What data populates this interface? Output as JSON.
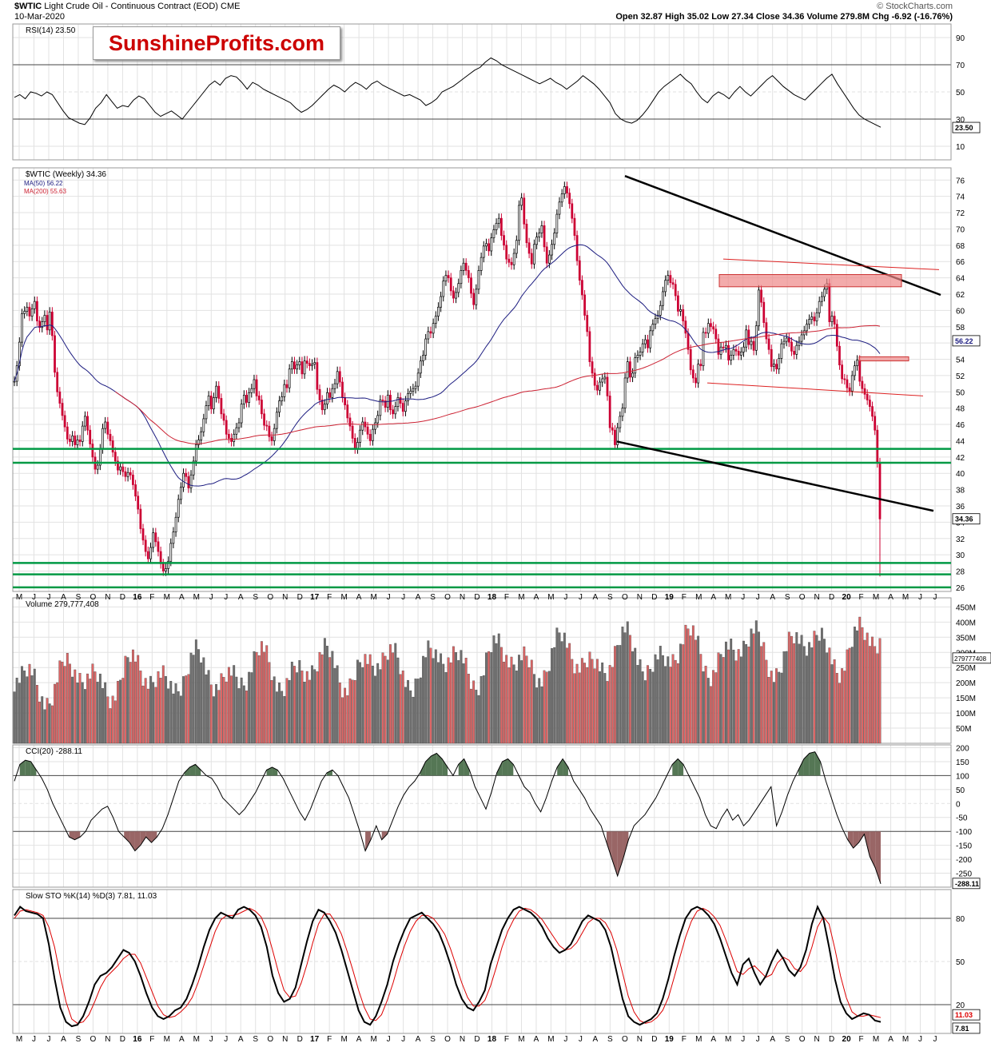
{
  "header": {
    "symbol": "$WTIC",
    "name": "Light Crude Oil - Continuous Contract (EOD)",
    "exchange": "CME",
    "date": "10-Mar-2020",
    "source": "© StockCharts.com",
    "quote": "Open 32.87  High 35.02  Low 27.34  Close 34.36  Volume 279.8M  Chg -6.92 (-16.76%)",
    "watermark": "SunshineProfits.com"
  },
  "colors": {
    "up": "#ffffff",
    "down": "#cc0033",
    "ma50": "#1c1c80",
    "ma200": "#cc2233",
    "support": "#009944",
    "vol_up": "#707070",
    "vol_down": "#dd6666",
    "osc_pos": "#557755",
    "osc_neg": "#996666"
  },
  "chart_data": [
    {
      "type": "line",
      "panel": "rsi",
      "title": "RSI(14) 23.50",
      "ylim": [
        0,
        100
      ],
      "ticks": [
        10,
        30,
        50,
        70,
        90
      ],
      "current_label": "23.50",
      "values": [
        46,
        48,
        45,
        50,
        49,
        47,
        50,
        48,
        42,
        36,
        31,
        29,
        27,
        26,
        31,
        38,
        42,
        48,
        43,
        38,
        40,
        39,
        44,
        47,
        45,
        40,
        35,
        32,
        34,
        36,
        33,
        30,
        35,
        40,
        45,
        50,
        55,
        58,
        55,
        60,
        62,
        61,
        57,
        52,
        57,
        55,
        52,
        50,
        48,
        46,
        44,
        42,
        38,
        35,
        37,
        40,
        44,
        48,
        52,
        55,
        53,
        50,
        54,
        57,
        55,
        52,
        56,
        58,
        55,
        53,
        51,
        49,
        47,
        48,
        46,
        44,
        40,
        42,
        45,
        50,
        52,
        54,
        57,
        60,
        63,
        66,
        68,
        72,
        75,
        73,
        70,
        68,
        66,
        64,
        62,
        60,
        58,
        56,
        58,
        60,
        57,
        55,
        52,
        55,
        58,
        62,
        59,
        56,
        52,
        47,
        42,
        34,
        30,
        28,
        27,
        29,
        33,
        38,
        44,
        50,
        54,
        57,
        60,
        63,
        59,
        56,
        50,
        45,
        42,
        47,
        50,
        48,
        45,
        50,
        54,
        50,
        47,
        51,
        55,
        59,
        62,
        58,
        54,
        51,
        48,
        46,
        44,
        48,
        52,
        56,
        60,
        63,
        56,
        50,
        44,
        38,
        33,
        30,
        28,
        26,
        24
      ]
    },
    {
      "type": "candlestick",
      "panel": "price",
      "title": "$WTIC (Weekly) 34.36",
      "ylim": [
        25.5,
        77.5
      ],
      "ticks": [
        26,
        28,
        30,
        32,
        34,
        36,
        38,
        40,
        42,
        44,
        46,
        48,
        50,
        52,
        54,
        56,
        58,
        60,
        62,
        64,
        66,
        68,
        70,
        72,
        74,
        76
      ],
      "current_label": "34.36",
      "ma50_label": "56.22",
      "legend": [
        "MA(50) 56.22",
        "MA(200) 55.63"
      ],
      "closes": [
        51.3,
        53.2,
        56.1,
        59.6,
        59.9,
        60.4,
        59.3,
        60.2,
        61.1,
        58.7,
        57.9,
        58.6,
        59.4,
        57.6,
        59.8,
        56.9,
        52.4,
        50.0,
        48.6,
        47.1,
        45.7,
        44.2,
        43.9,
        44.6,
        43.5,
        44.1,
        43.9,
        45.8,
        47.0,
        45.3,
        43.6,
        42.0,
        40.5,
        41.0,
        43.0,
        45.5,
        46.3,
        44.8,
        44.0,
        42.6,
        41.5,
        40.4,
        40.8,
        40.2,
        39.6,
        40.1,
        39.8,
        38.6,
        37.2,
        35.6,
        33.2,
        31.8,
        30.4,
        29.5,
        30.9,
        32.7,
        31.6,
        30.4,
        28.9,
        28.0,
        28.3,
        29.2,
        31.4,
        32.8,
        34.6,
        36.8,
        38.3,
        40.0,
        39.6,
        38.2,
        39.8,
        41.5,
        43.5,
        44.1,
        45.1,
        46.7,
        48.3,
        49.5,
        47.9,
        49.3,
        50.7,
        49.2,
        47.3,
        46.5,
        44.8,
        44.3,
        43.9,
        44.8,
        45.6,
        46.2,
        48.5,
        49.6,
        48.7,
        49.9,
        50.4,
        51.5,
        49.5,
        49.0,
        47.3,
        45.9,
        45.8,
        44.5,
        44.0,
        45.5,
        47.5,
        48.9,
        49.4,
        50.9,
        50.5,
        52.8,
        53.7,
        52.8,
        53.3,
        53.7,
        52.2,
        53.8,
        53.5,
        53.2,
        53.4,
        53.6,
        50.3,
        49.0,
        47.8,
        48.5,
        49.9,
        49.3,
        50.4,
        51.0,
        52.5,
        51.2,
        49.3,
        48.4,
        46.8,
        45.8,
        44.3,
        43.0,
        43.8,
        45.3,
        46.3,
        45.7,
        44.8,
        44.0,
        45.4,
        46.2,
        47.1,
        49.0,
        48.9,
        48.1,
        49.6,
        47.8,
        47.3,
        48.2,
        49.3,
        48.6,
        47.6,
        48.9,
        49.8,
        50.1,
        50.4,
        50.7,
        52.3,
        53.8,
        54.5,
        56.5,
        57.4,
        57.2,
        58.4,
        59.3,
        60.4,
        61.7,
        63.6,
        64.3,
        64.0,
        62.4,
        61.5,
        62.2,
        63.3,
        64.9,
        65.8,
        64.9,
        64.0,
        62.1,
        60.7,
        62.6,
        64.9,
        66.5,
        67.9,
        68.2,
        67.3,
        68.9,
        69.9,
        70.7,
        71.3,
        69.2,
        68.0,
        66.3,
        65.9,
        65.6,
        67.0,
        68.6,
        72.9,
        73.8,
        70.6,
        68.3,
        67.0,
        65.7,
        68.1,
        69.0,
        69.5,
        70.4,
        67.8,
        65.8,
        66.8,
        68.1,
        69.5,
        71.8,
        73.3,
        74.3,
        75.2,
        74.4,
        73.1,
        71.3,
        69.2,
        66.1,
        63.7,
        61.9,
        59.4,
        57.4,
        53.7,
        52.3,
        50.8,
        50.2,
        51.2,
        51.6,
        51.8,
        49.5,
        45.6,
        45.3,
        43.5,
        45.6,
        47.0,
        48.0,
        51.7,
        53.7,
        51.8,
        52.3,
        54.2,
        54.5,
        54.9,
        55.9,
        56.4,
        55.4,
        57.5,
        58.3,
        59.0,
        59.4,
        60.6,
        62.3,
        63.7,
        64.3,
        63.4,
        63.2,
        61.8,
        59.9,
        60.1,
        58.7,
        57.2,
        55.2,
        52.7,
        51.7,
        51.1,
        53.4,
        53.2,
        57.3,
        57.2,
        58.4,
        58.0,
        57.7,
        56.5,
        54.6,
        55.5,
        55.4,
        55.7,
        53.9,
        54.5,
        55.2,
        55.0,
        54.5,
        54.9,
        55.5,
        57.6,
        55.8,
        56.2,
        55.1,
        58.1,
        62.5,
        61.0,
        58.5,
        56.5,
        55.2,
        53.1,
        53.4,
        52.8,
        54.1,
        55.9,
        56.2,
        56.6,
        56.1,
        55.0,
        54.6,
        55.7,
        56.2,
        57.0,
        57.5,
        58.3,
        58.9,
        59.2,
        58.7,
        59.7,
        61.1,
        61.7,
        62.6,
        63.3,
        58.6,
        59.3,
        58.3,
        55.6,
        53.3,
        51.6,
        51.5,
        50.5,
        50.1,
        52.0,
        53.2,
        53.9,
        51.3,
        50.4,
        49.7,
        49.0,
        48.2,
        47.0,
        45.3,
        41.3,
        34.4
      ]
    },
    {
      "type": "bar",
      "panel": "volume",
      "title": "Volume 279,777,408",
      "ylim": [
        0,
        480
      ],
      "ticks": [
        "50M",
        "100M",
        "150M",
        "200M",
        "250M",
        "300M",
        "350M",
        "400M",
        "450M"
      ],
      "current_label": "279777408"
    },
    {
      "type": "line",
      "panel": "cci",
      "title": "CCI(20) -288.11",
      "ylim": [
        -300,
        210
      ],
      "ticks": [
        -250,
        -200,
        -150,
        -100,
        -50,
        0,
        50,
        100,
        150,
        200
      ],
      "current_label": "-288.11",
      "values": [
        80,
        140,
        155,
        150,
        120,
        90,
        50,
        0,
        -40,
        -80,
        -120,
        -130,
        -120,
        -100,
        -60,
        -40,
        -20,
        -10,
        -50,
        -100,
        -120,
        -140,
        -170,
        -150,
        -120,
        -140,
        -120,
        -90,
        -40,
        20,
        80,
        110,
        130,
        140,
        120,
        100,
        90,
        60,
        20,
        0,
        -20,
        -40,
        -20,
        10,
        40,
        80,
        120,
        130,
        120,
        90,
        50,
        10,
        -30,
        -60,
        -20,
        30,
        80,
        110,
        120,
        100,
        60,
        20,
        -40,
        -100,
        -170,
        -130,
        -80,
        -130,
        -110,
        -60,
        -10,
        30,
        60,
        80,
        110,
        150,
        170,
        180,
        160,
        130,
        100,
        140,
        160,
        120,
        60,
        20,
        -20,
        40,
        110,
        150,
        160,
        140,
        100,
        60,
        40,
        0,
        -30,
        20,
        80,
        130,
        160,
        130,
        80,
        50,
        20,
        -20,
        -50,
        -80,
        -140,
        -200,
        -260,
        -200,
        -130,
        -80,
        -60,
        -40,
        -10,
        20,
        60,
        100,
        140,
        160,
        140,
        100,
        60,
        20,
        -40,
        -80,
        -90,
        -50,
        -20,
        -60,
        -40,
        -80,
        -60,
        -30,
        0,
        30,
        60,
        -80,
        -30,
        30,
        80,
        120,
        160,
        180,
        185,
        150,
        80,
        20,
        -40,
        -90,
        -130,
        -160,
        -140,
        -110,
        -190,
        -230,
        -288
      ]
    },
    {
      "type": "line",
      "panel": "stochastics",
      "title": "Slow STO %K(14) %D(3) 7.81, 11.03",
      "ylim": [
        0,
        100
      ],
      "ticks": [
        20,
        50,
        80
      ],
      "current_labels": [
        "11.03",
        "7.81"
      ],
      "k_values": [
        82,
        88,
        85,
        84,
        83,
        80,
        62,
        38,
        18,
        8,
        5,
        6,
        12,
        22,
        34,
        40,
        42,
        46,
        52,
        58,
        56,
        50,
        40,
        28,
        18,
        12,
        10,
        12,
        16,
        18,
        24,
        34,
        46,
        60,
        72,
        80,
        84,
        82,
        80,
        86,
        88,
        86,
        82,
        74,
        60,
        40,
        28,
        22,
        24,
        32,
        48,
        64,
        78,
        86,
        84,
        78,
        70,
        58,
        44,
        30,
        16,
        8,
        6,
        12,
        22,
        34,
        50,
        62,
        72,
        80,
        82,
        84,
        80,
        76,
        70,
        60,
        48,
        34,
        24,
        18,
        16,
        22,
        30,
        48,
        60,
        72,
        80,
        86,
        88,
        86,
        84,
        80,
        74,
        66,
        60,
        56,
        58,
        62,
        70,
        78,
        82,
        80,
        78,
        72,
        60,
        42,
        24,
        12,
        8,
        6,
        8,
        10,
        14,
        24,
        38,
        54,
        68,
        80,
        86,
        88,
        86,
        82,
        76,
        66,
        54,
        42,
        34,
        48,
        52,
        42,
        34,
        40,
        50,
        58,
        52,
        44,
        40,
        46,
        58,
        76,
        88,
        80,
        60,
        38,
        22,
        14,
        10,
        12,
        14,
        13,
        9,
        8
      ],
      "d_values": [
        80,
        85,
        86,
        85,
        84,
        82,
        74,
        60,
        40,
        22,
        10,
        7,
        8,
        13,
        22,
        32,
        39,
        43,
        47,
        52,
        55,
        55,
        49,
        39,
        29,
        19,
        13,
        11,
        12,
        15,
        19,
        25,
        35,
        47,
        59,
        71,
        79,
        82,
        82,
        83,
        85,
        87,
        85,
        81,
        72,
        58,
        43,
        30,
        25,
        26,
        35,
        48,
        63,
        76,
        83,
        83,
        77,
        69,
        57,
        44,
        30,
        18,
        10,
        9,
        13,
        23,
        35,
        49,
        61,
        71,
        78,
        82,
        82,
        80,
        75,
        69,
        59,
        47,
        35,
        25,
        19,
        19,
        23,
        33,
        46,
        60,
        71,
        79,
        85,
        87,
        86,
        83,
        79,
        73,
        67,
        61,
        58,
        59,
        63,
        70,
        77,
        80,
        80,
        77,
        70,
        58,
        42,
        26,
        15,
        9,
        7,
        8,
        11,
        16,
        25,
        39,
        53,
        67,
        78,
        85,
        87,
        85,
        81,
        75,
        65,
        54,
        43,
        41,
        45,
        47,
        43,
        39,
        41,
        49,
        53,
        51,
        45,
        43,
        48,
        60,
        74,
        81,
        76,
        59,
        40,
        25,
        15,
        12,
        12,
        13,
        12,
        11
      ]
    }
  ],
  "x_axis": {
    "labels": [
      "M",
      "J",
      "J",
      "A",
      "S",
      "O",
      "N",
      "D",
      "16",
      "F",
      "M",
      "A",
      "M",
      "J",
      "J",
      "A",
      "S",
      "O",
      "N",
      "D",
      "17",
      "F",
      "M",
      "A",
      "M",
      "J",
      "J",
      "A",
      "S",
      "O",
      "N",
      "D",
      "18",
      "F",
      "M",
      "A",
      "M",
      "J",
      "J",
      "A",
      "S",
      "O",
      "N",
      "D",
      "19",
      "F",
      "M",
      "A",
      "M",
      "J",
      "J",
      "A",
      "S",
      "O",
      "N",
      "D",
      "20",
      "F",
      "M",
      "A",
      "M",
      "J",
      "J"
    ],
    "bold_labels": [
      "16",
      "17",
      "18",
      "19",
      "20"
    ]
  }
}
